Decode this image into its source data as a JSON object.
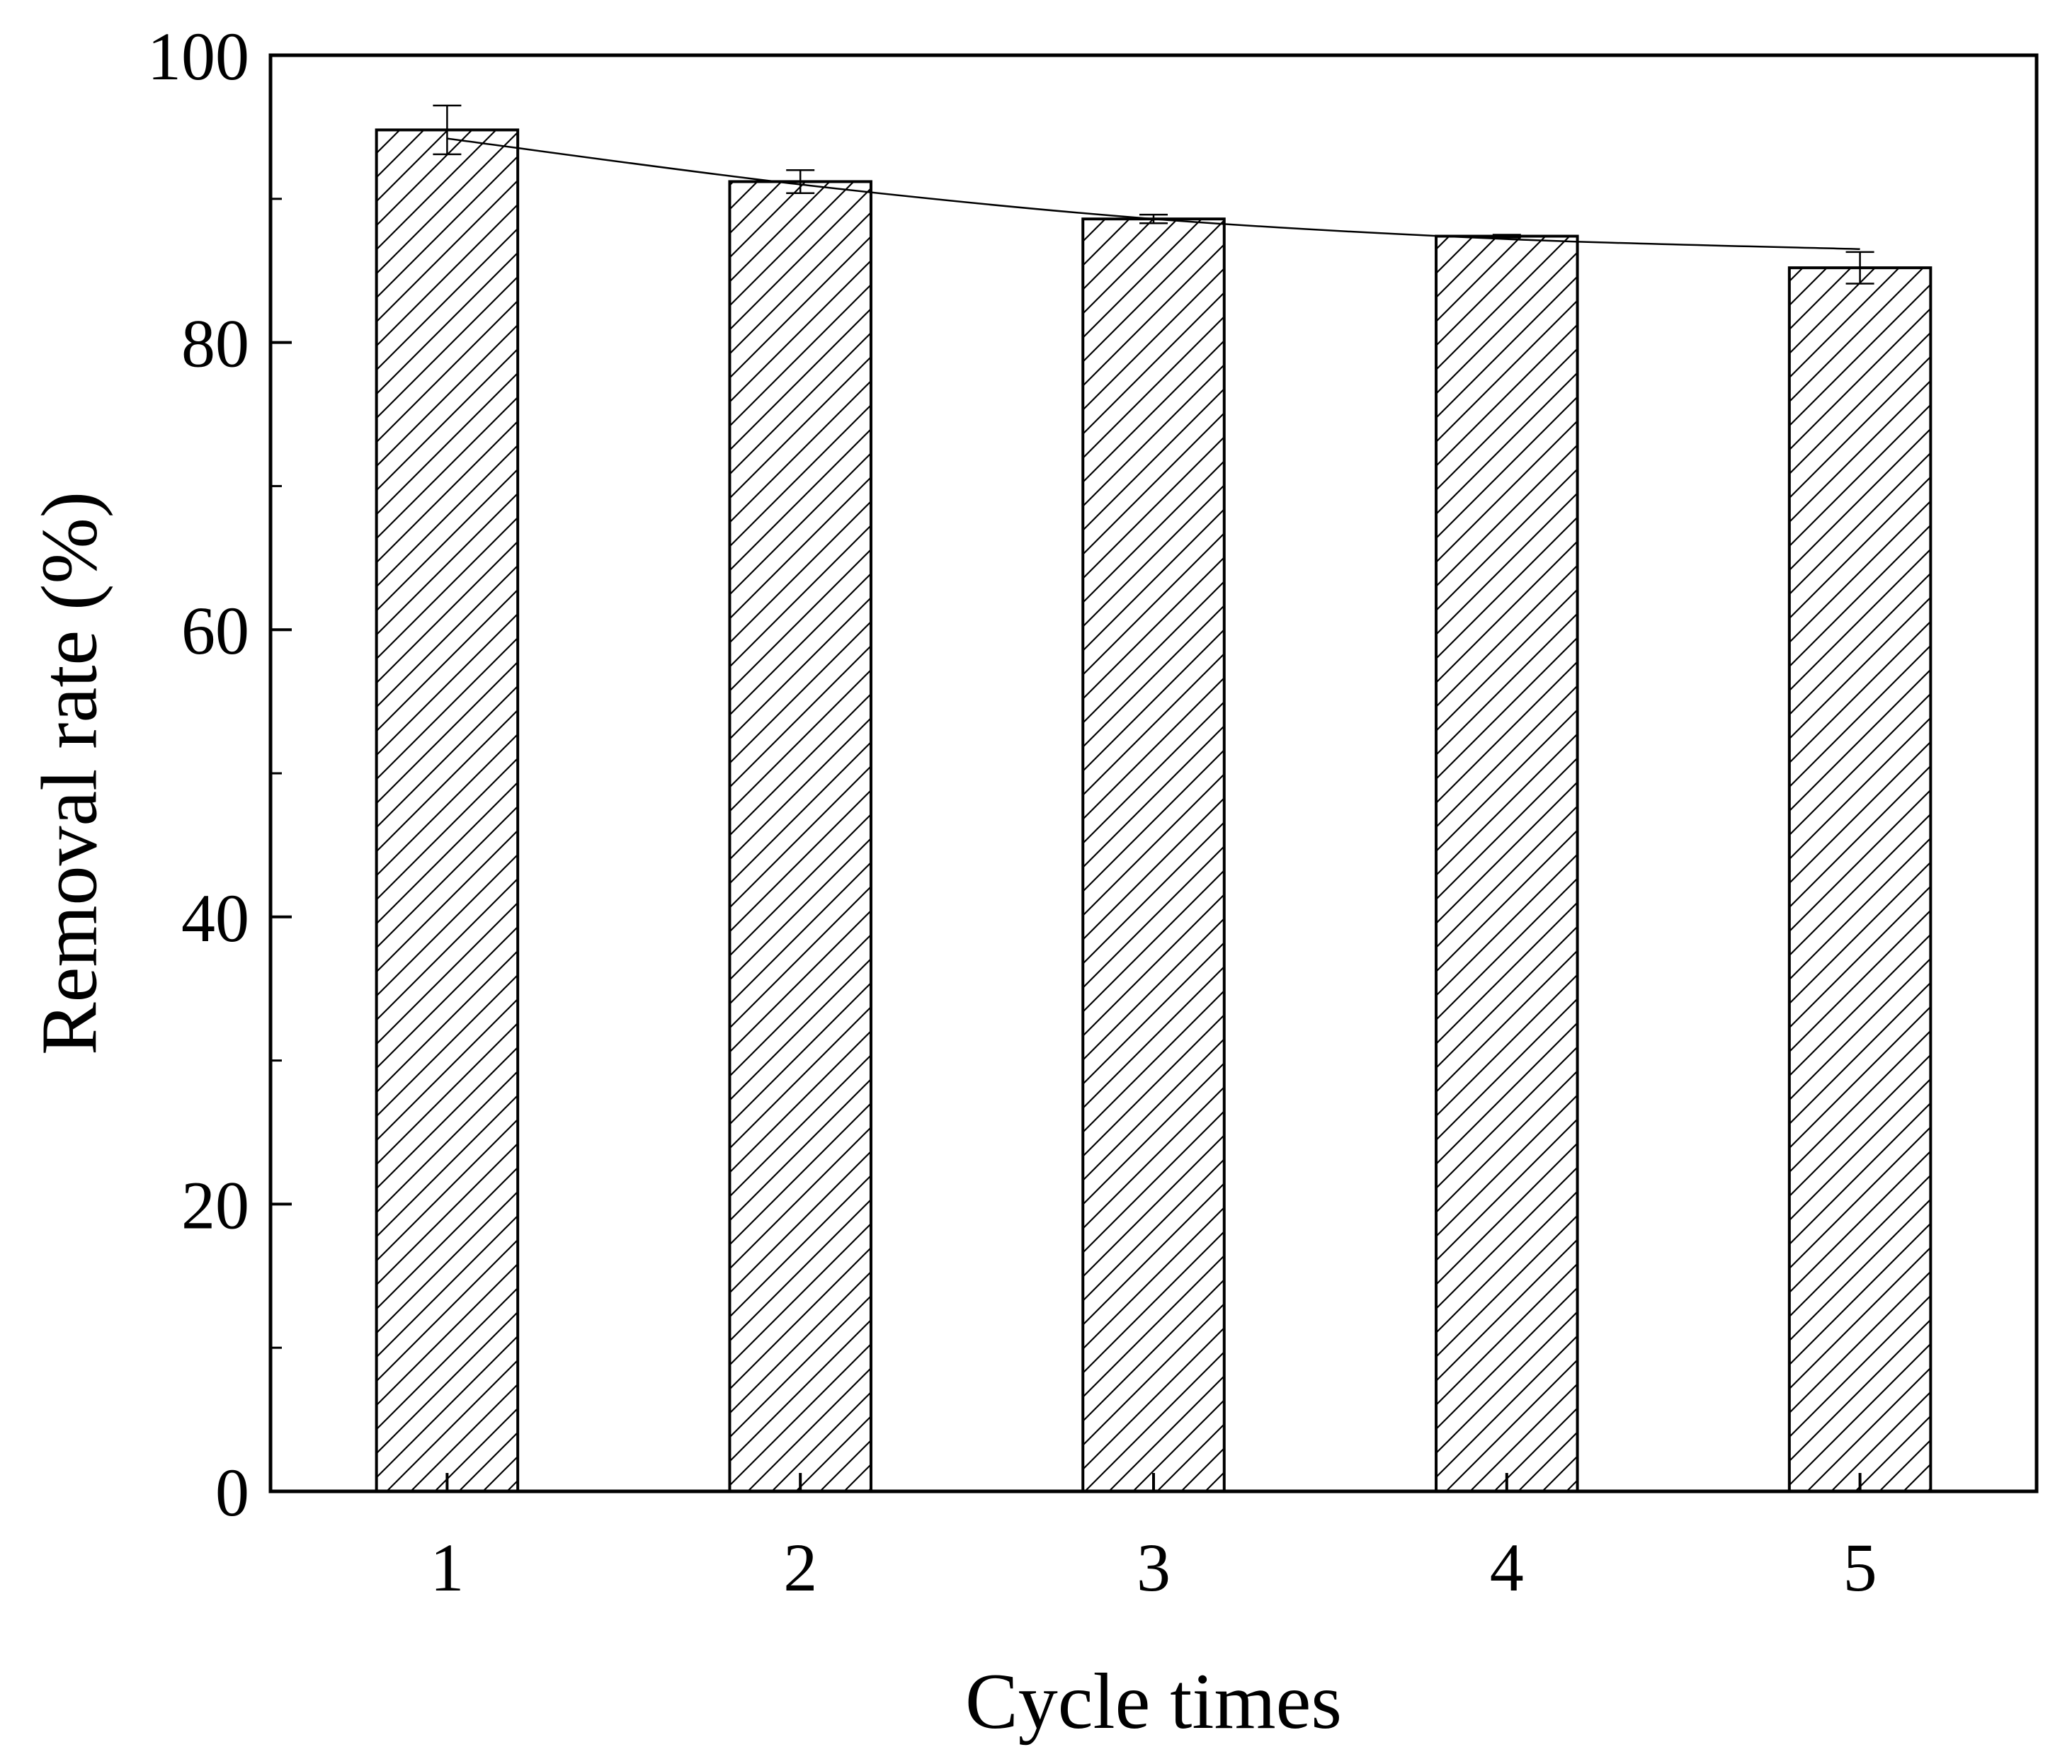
{
  "chart_data": {
    "type": "bar",
    "title": "",
    "xlabel": "Cycle times",
    "ylabel": "Removal rate (%)",
    "categories": [
      "1",
      "2",
      "3",
      "4",
      "5"
    ],
    "series": [
      {
        "values": [
          94.8,
          91.2,
          88.6,
          87.4,
          85.2
        ],
        "errors": [
          1.7,
          0.8,
          0.3,
          0.1,
          1.1
        ]
      }
    ],
    "trend_line": [
      94.2,
      91.0,
      88.6,
      87.2,
      86.5
    ],
    "ylim": [
      0,
      100
    ],
    "y_major_ticks": [
      0,
      20,
      40,
      60,
      80,
      100
    ],
    "y_minor_ticks": [
      10,
      30,
      50,
      70,
      90
    ],
    "bar_fill": "hatched",
    "bar_color": "#000000",
    "background": "#ffffff",
    "grid": false,
    "legend": "none"
  }
}
